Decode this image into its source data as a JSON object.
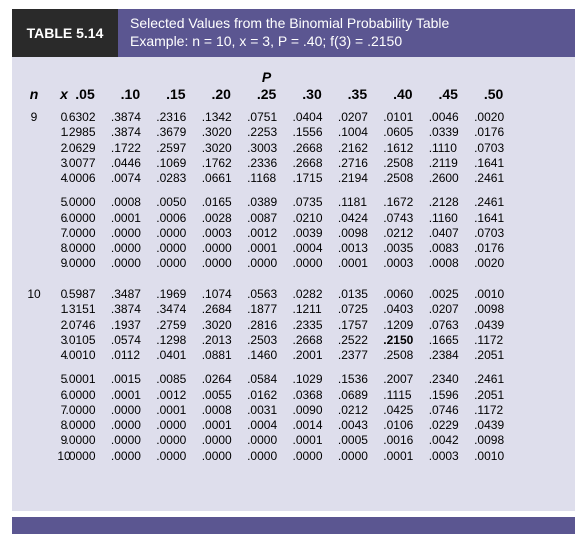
{
  "table_label": "TABLE 5.14",
  "title_line1": "Selected Values from the Binomial Probability Table",
  "title_line2": "Example: n = 10, x = 3, P = .40; f(3) = .2150",
  "p_label": "P",
  "header": {
    "n": "n",
    "x": "x",
    "p_values": [
      ".05",
      ".10",
      ".15",
      ".20",
      ".25",
      ".30",
      ".35",
      ".40",
      ".45",
      ".50"
    ]
  },
  "highlight": {
    "n": "10",
    "x": "3",
    "p": ".40"
  },
  "blocks": [
    {
      "n": "9",
      "groups": [
        {
          "rows": [
            {
              "x": "0",
              "values": [
                ".6302",
                ".3874",
                ".2316",
                ".1342",
                ".0751",
                ".0404",
                ".0207",
                ".0101",
                ".0046",
                ".0020"
              ]
            },
            {
              "x": "1",
              "values": [
                ".2985",
                ".3874",
                ".3679",
                ".3020",
                ".2253",
                ".1556",
                ".1004",
                ".0605",
                ".0339",
                ".0176"
              ]
            },
            {
              "x": "2",
              "values": [
                ".0629",
                ".1722",
                ".2597",
                ".3020",
                ".3003",
                ".2668",
                ".2162",
                ".1612",
                ".1110",
                ".0703"
              ]
            },
            {
              "x": "3",
              "values": [
                ".0077",
                ".0446",
                ".1069",
                ".1762",
                ".2336",
                ".2668",
                ".2716",
                ".2508",
                ".2119",
                ".1641"
              ]
            },
            {
              "x": "4",
              "values": [
                ".0006",
                ".0074",
                ".0283",
                ".0661",
                ".1168",
                ".1715",
                ".2194",
                ".2508",
                ".2600",
                ".2461"
              ]
            }
          ]
        },
        {
          "rows": [
            {
              "x": "5",
              "values": [
                ".0000",
                ".0008",
                ".0050",
                ".0165",
                ".0389",
                ".0735",
                ".1181",
                ".1672",
                ".2128",
                ".2461"
              ]
            },
            {
              "x": "6",
              "values": [
                ".0000",
                ".0001",
                ".0006",
                ".0028",
                ".0087",
                ".0210",
                ".0424",
                ".0743",
                ".1160",
                ".1641"
              ]
            },
            {
              "x": "7",
              "values": [
                ".0000",
                ".0000",
                ".0000",
                ".0003",
                ".0012",
                ".0039",
                ".0098",
                ".0212",
                ".0407",
                ".0703"
              ]
            },
            {
              "x": "8",
              "values": [
                ".0000",
                ".0000",
                ".0000",
                ".0000",
                ".0001",
                ".0004",
                ".0013",
                ".0035",
                ".0083",
                ".0176"
              ]
            },
            {
              "x": "9",
              "values": [
                ".0000",
                ".0000",
                ".0000",
                ".0000",
                ".0000",
                ".0000",
                ".0001",
                ".0003",
                ".0008",
                ".0020"
              ]
            }
          ]
        }
      ]
    },
    {
      "n": "10",
      "groups": [
        {
          "rows": [
            {
              "x": "0",
              "values": [
                ".5987",
                ".3487",
                ".1969",
                ".1074",
                ".0563",
                ".0282",
                ".0135",
                ".0060",
                ".0025",
                ".0010"
              ]
            },
            {
              "x": "1",
              "values": [
                ".3151",
                ".3874",
                ".3474",
                ".2684",
                ".1877",
                ".1211",
                ".0725",
                ".0403",
                ".0207",
                ".0098"
              ]
            },
            {
              "x": "2",
              "values": [
                ".0746",
                ".1937",
                ".2759",
                ".3020",
                ".2816",
                ".2335",
                ".1757",
                ".1209",
                ".0763",
                ".0439"
              ]
            },
            {
              "x": "3",
              "values": [
                ".0105",
                ".0574",
                ".1298",
                ".2013",
                ".2503",
                ".2668",
                ".2522",
                ".2150",
                ".1665",
                ".1172"
              ]
            },
            {
              "x": "4",
              "values": [
                ".0010",
                ".0112",
                ".0401",
                ".0881",
                ".1460",
                ".2001",
                ".2377",
                ".2508",
                ".2384",
                ".2051"
              ]
            }
          ]
        },
        {
          "rows": [
            {
              "x": "5",
              "values": [
                ".0001",
                ".0015",
                ".0085",
                ".0264",
                ".0584",
                ".1029",
                ".1536",
                ".2007",
                ".2340",
                ".2461"
              ]
            },
            {
              "x": "6",
              "values": [
                ".0000",
                ".0001",
                ".0012",
                ".0055",
                ".0162",
                ".0368",
                ".0689",
                ".1115",
                ".1596",
                ".2051"
              ]
            },
            {
              "x": "7",
              "values": [
                ".0000",
                ".0000",
                ".0001",
                ".0008",
                ".0031",
                ".0090",
                ".0212",
                ".0425",
                ".0746",
                ".1172"
              ]
            },
            {
              "x": "8",
              "values": [
                ".0000",
                ".0000",
                ".0000",
                ".0001",
                ".0004",
                ".0014",
                ".0043",
                ".0106",
                ".0229",
                ".0439"
              ]
            },
            {
              "x": "9",
              "values": [
                ".0000",
                ".0000",
                ".0000",
                ".0000",
                ".0000",
                ".0001",
                ".0005",
                ".0016",
                ".0042",
                ".0098"
              ]
            },
            {
              "x": "10",
              "values": [
                ".0000",
                ".0000",
                ".0000",
                ".0000",
                ".0000",
                ".0000",
                ".0000",
                ".0001",
                ".0003",
                ".0010"
              ]
            }
          ]
        }
      ]
    }
  ]
}
